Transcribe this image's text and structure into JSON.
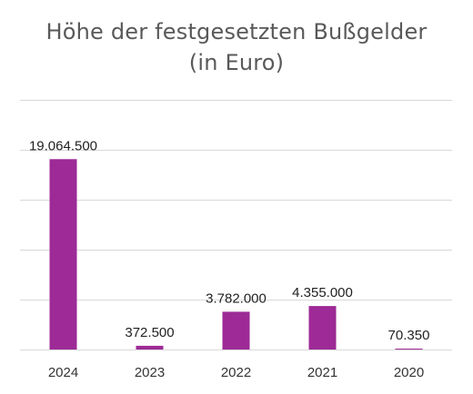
{
  "chart_data": {
    "type": "bar",
    "title_line1": "Höhe der festgesetzten Bußgelder",
    "title_line2": "(in Euro)",
    "categories": [
      "2024",
      "2023",
      "2022",
      "2021",
      "2020"
    ],
    "values": [
      19064500,
      372500,
      3782000,
      4355000,
      70350
    ],
    "value_labels": [
      "19.064.500",
      "372.500",
      "3.782.000",
      "4.355.000",
      "70.350"
    ],
    "ylim": [
      0,
      25000000
    ],
    "grid": true,
    "legend": "none",
    "bar_color": "#9d2a96",
    "grid_color": "#d9d9d9"
  }
}
